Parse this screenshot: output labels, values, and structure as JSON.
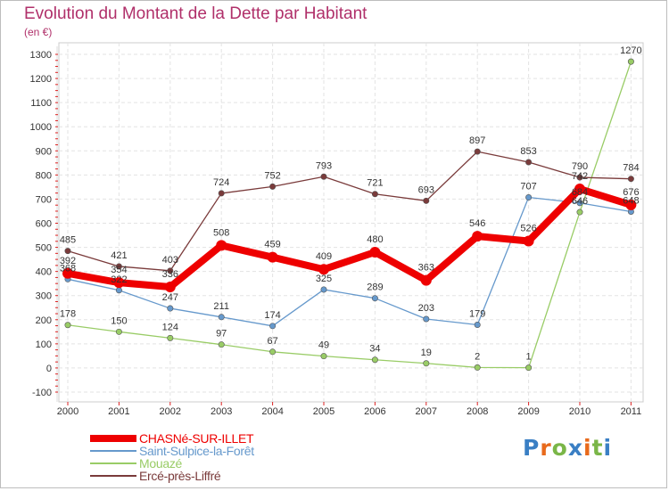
{
  "title": "Evolution du Montant de la Dette par Habitant",
  "unit": "(en €)",
  "chart_data": {
    "type": "line",
    "title": "Evolution du Montant de la Dette par Habitant",
    "ylabel": "(en €)",
    "xlabel": "",
    "ylim": [
      -100,
      1300
    ],
    "yticks": [
      -100,
      0,
      100,
      200,
      300,
      400,
      500,
      600,
      700,
      800,
      900,
      1000,
      1100,
      1200,
      1300
    ],
    "x": [
      "2000",
      "2001",
      "2002",
      "2003",
      "2004",
      "2005",
      "2006",
      "2007",
      "2008",
      "2009",
      "2010",
      "2011"
    ],
    "grid": true,
    "legend_position": "bottom-left",
    "series": [
      {
        "name": "CHASNé-SUR-ILLET",
        "color": "#ee0000",
        "values": [
          392,
          354,
          336,
          508,
          459,
          409,
          480,
          363,
          546,
          526,
          742,
          676
        ]
      },
      {
        "name": "Saint-Sulpice-la-Forêt",
        "color": "#6699cc",
        "values": [
          368,
          322,
          247,
          211,
          174,
          325,
          289,
          203,
          179,
          707,
          684,
          648
        ]
      },
      {
        "name": "Mouazé",
        "color": "#99cc66",
        "values": [
          178,
          150,
          124,
          97,
          67,
          49,
          34,
          19,
          2,
          1,
          646,
          1270
        ]
      },
      {
        "name": "Ercé-près-Liffré",
        "color": "#7a3b3b",
        "values": [
          485,
          421,
          403,
          724,
          752,
          793,
          721,
          693,
          897,
          853,
          790,
          784
        ]
      }
    ]
  },
  "logo": {
    "text": "Proxiti",
    "letter_colors": [
      "#3a7fc4",
      "#e86a1c",
      "#7ab648",
      "#3a7fc4",
      "#e86a1c",
      "#7ab648",
      "#3a7fc4"
    ]
  }
}
